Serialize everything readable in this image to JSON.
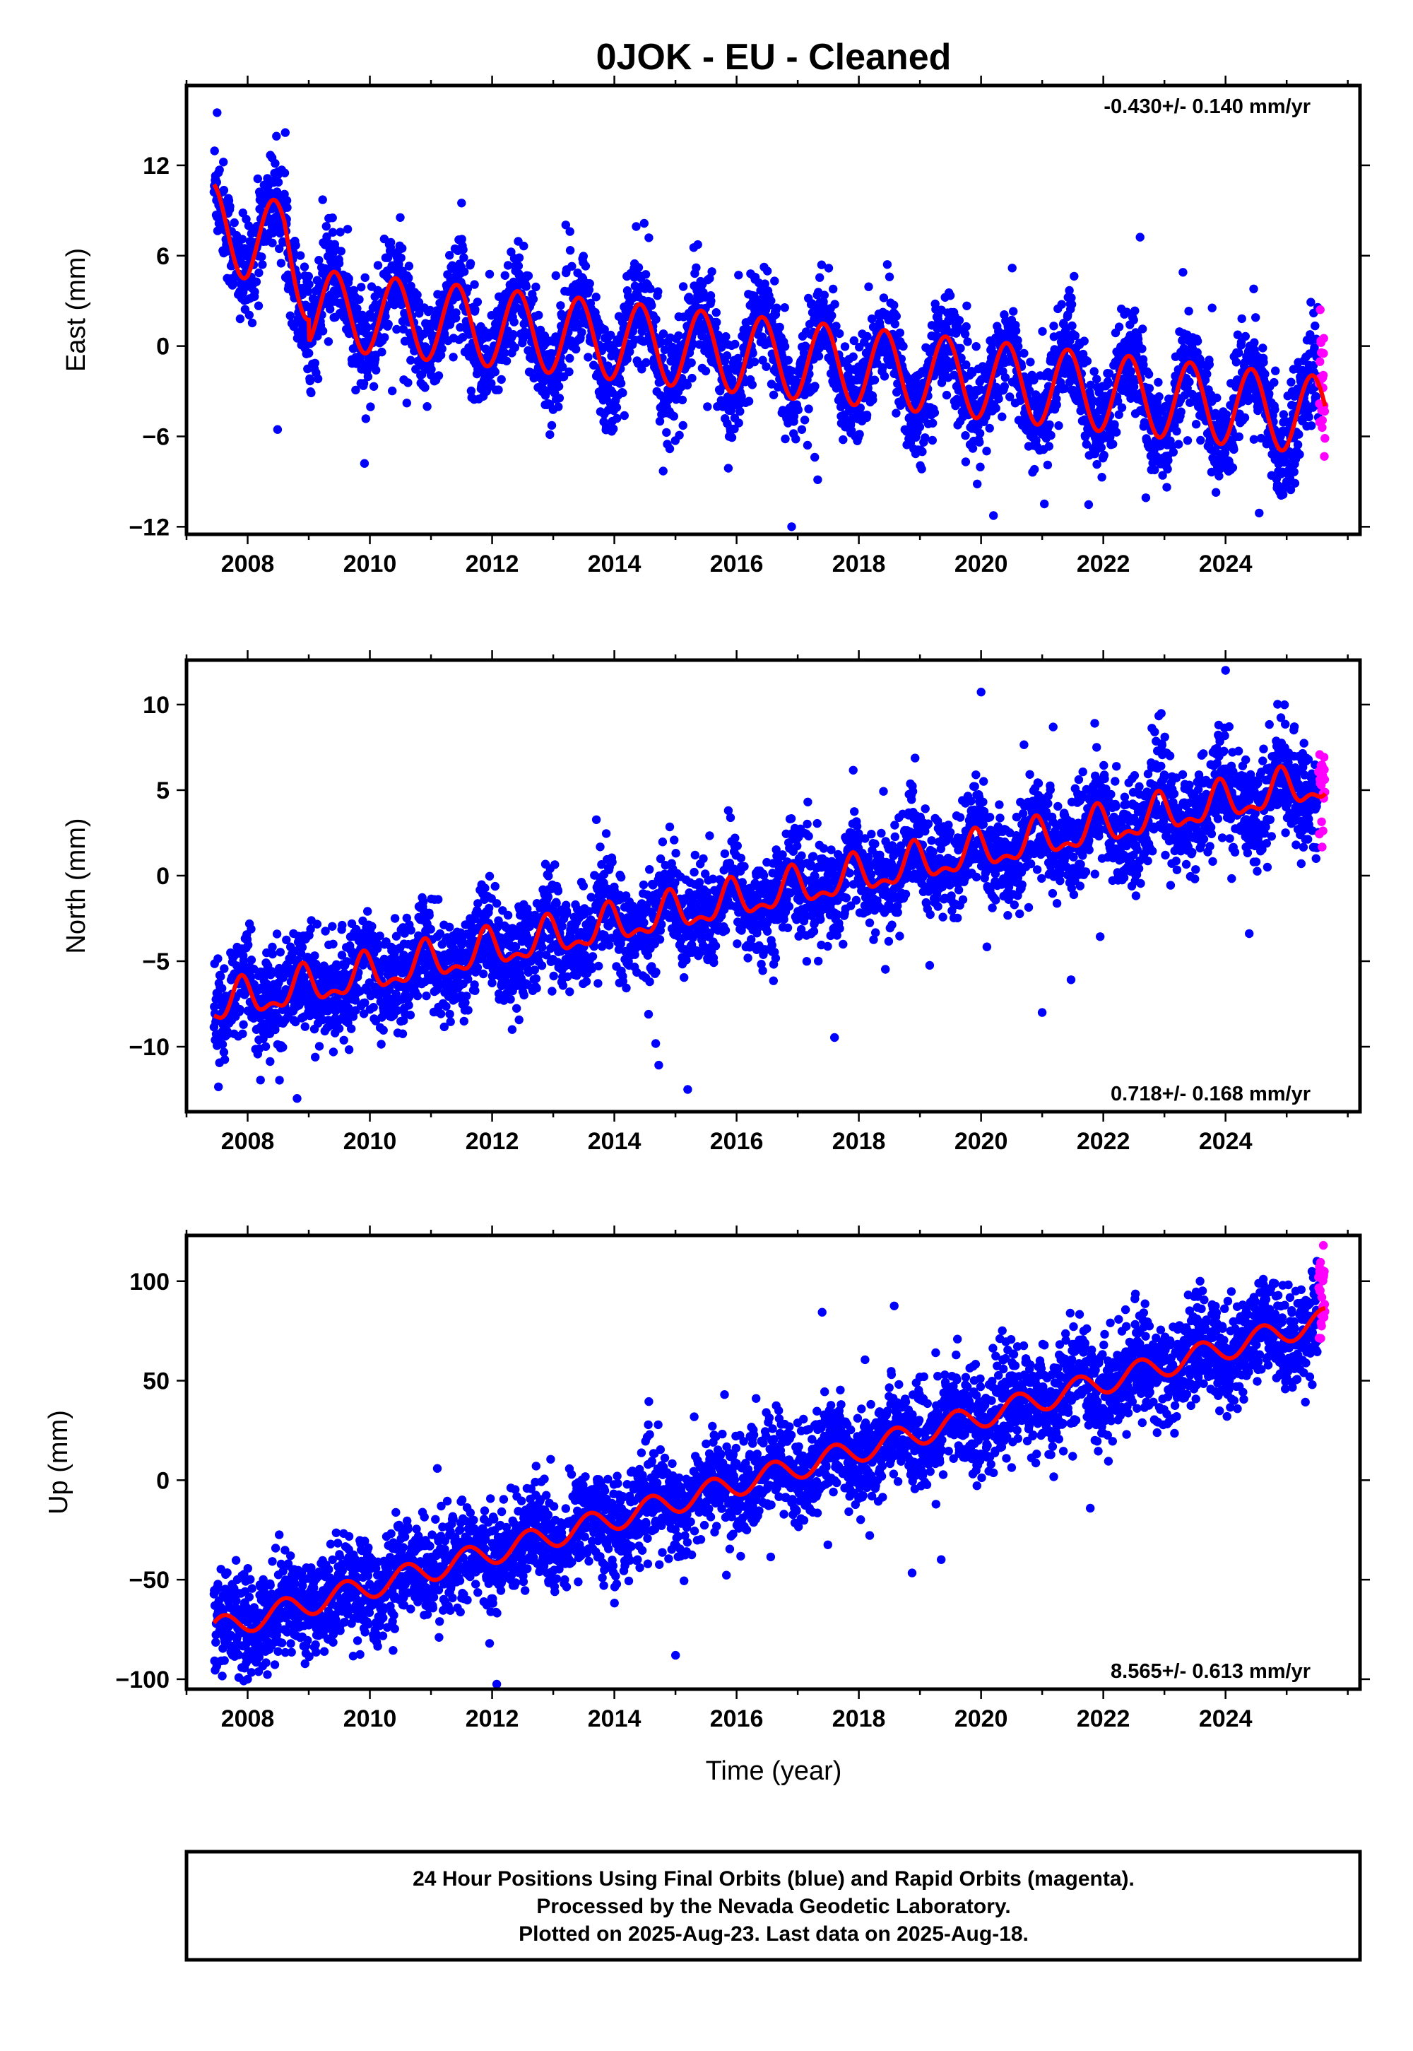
{
  "title": "0JOK  - EU - Cleaned",
  "colors": {
    "final_orbits": "#0000ff",
    "rapid_orbits": "#ff00ff",
    "model_fit": "#ff0000"
  },
  "footer": {
    "line1": "24 Hour Positions Using Final Orbits (blue) and Rapid Orbits (magenta).",
    "line2": "Processed by the Nevada Geodetic Laboratory.",
    "line3": "Plotted on 2025-Aug-23. Last data on 2025-Aug-18."
  },
  "chart_data": [
    {
      "type": "scatter",
      "component": "east",
      "ylabel": "East (mm)",
      "xlabel": "",
      "rate_label": "-0.430+/- 0.140 mm/yr",
      "rate_position": "top-right",
      "xlim": [
        2007.0,
        2026.2
      ],
      "ylim": [
        -12.5,
        17.3
      ],
      "xticks": [
        2008,
        2010,
        2012,
        2014,
        2016,
        2018,
        2020,
        2022,
        2024
      ],
      "yticks": [
        -12,
        -6,
        0,
        6,
        12
      ],
      "grid": false,
      "data_span": [
        2007.45,
        2025.63
      ],
      "rapid_span": [
        2025.52,
        2025.63
      ],
      "model": {
        "rate_mm_per_yr": -0.43,
        "offset_mm_at_2016": -0.5,
        "annual_amplitude_mm": 2.6,
        "annual_peak_year_fraction": 0.42,
        "early_transient_mm": [
          [
            2007.45,
            5.0
          ],
          [
            2008.0,
            4.0
          ],
          [
            2008.6,
            4.5
          ],
          [
            2009.0,
            1.5
          ]
        ]
      },
      "observed_features": [
        {
          "x": 2007.5,
          "y": 15.5,
          "note": "early high values"
        },
        {
          "x": 2008.4,
          "y": 12.5,
          "note": "secondary high"
        },
        {
          "x": 2016.9,
          "y": -12.0,
          "note": "outlier low"
        }
      ]
    },
    {
      "type": "scatter",
      "component": "north",
      "ylabel": "North (mm)",
      "xlabel": "",
      "rate_label": "0.718+/- 0.168 mm/yr",
      "rate_position": "bottom-right",
      "xlim": [
        2007.0,
        2026.2
      ],
      "ylim": [
        -13.8,
        12.6
      ],
      "xticks": [
        2008,
        2010,
        2012,
        2014,
        2016,
        2018,
        2020,
        2022,
        2024
      ],
      "yticks": [
        -10,
        -5,
        0,
        5,
        10
      ],
      "grid": false,
      "data_span": [
        2007.45,
        2025.63
      ],
      "rapid_span": [
        2025.52,
        2025.63
      ],
      "model": {
        "rate_mm_per_yr": 0.718,
        "offset_mm_at_2016": -1.5,
        "annual_amplitude_mm": 1.0,
        "annual_peak_year_fraction": 0.9,
        "semiannual_amplitude_mm": 0.5
      },
      "observed_features": [
        {
          "x": 2021.0,
          "y": -8.0,
          "note": "outlier low"
        },
        {
          "x": 2015.2,
          "y": -12.5,
          "note": "outlier low"
        },
        {
          "x": 2024.0,
          "y": 12.0,
          "note": "high spread"
        }
      ]
    },
    {
      "type": "scatter",
      "component": "up",
      "ylabel": "Up (mm)",
      "xlabel": "Time (year)",
      "rate_label": "8.565+/- 0.613 mm/yr",
      "rate_position": "bottom-right",
      "xlim": [
        2007.0,
        2026.2
      ],
      "ylim": [
        -105,
        123
      ],
      "xticks": [
        2008,
        2010,
        2012,
        2014,
        2016,
        2018,
        2020,
        2022,
        2024
      ],
      "yticks": [
        -100,
        -50,
        0,
        50,
        100
      ],
      "grid": false,
      "data_span": [
        2007.45,
        2025.63
      ],
      "rapid_span": [
        2025.52,
        2025.63
      ],
      "model": {
        "rate_mm_per_yr": 8.565,
        "offset_mm_at_2016": -2.0,
        "annual_amplitude_mm": 6.0,
        "annual_peak_year_fraction": 0.6
      },
      "observed_features": [
        {
          "x": 2008.0,
          "y": -100,
          "note": "early low"
        },
        {
          "x": 2025.6,
          "y": 118,
          "note": "rapid orbits high"
        }
      ]
    }
  ]
}
